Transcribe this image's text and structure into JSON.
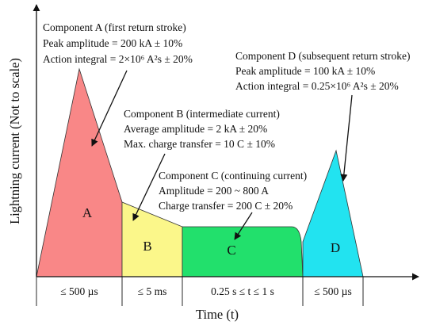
{
  "diagram": {
    "y_axis_label": "Lightning current (Not to scale)",
    "x_axis_label": "Time (t)",
    "colors": {
      "component_a": "#f98787",
      "component_b": "#fbf78a",
      "component_c": "#22e06c",
      "component_d": "#22e3f0",
      "axis": "#111111"
    },
    "components": [
      {
        "letter": "A",
        "annotation": [
          "Component A (first return stroke)",
          "Peak amplitude = 200 kA ± 10%",
          "Action integral = 2×10⁶ A²s ± 20%"
        ],
        "duration": "≤ 500 µs"
      },
      {
        "letter": "B",
        "annotation": [
          "Component B (intermediate current)",
          "Average amplitude = 2 kA ± 20%",
          "Max. charge transfer = 10 C ± 10%"
        ],
        "duration": "≤ 5 ms"
      },
      {
        "letter": "C",
        "annotation": [
          "Component C (continuing current)",
          "Amplitude = 200 ~ 800 A",
          "Charge transfer = 200 C ± 20%"
        ],
        "duration": "0.25 s ≤ t ≤ 1 s"
      },
      {
        "letter": "D",
        "annotation": [
          "Component D (subsequent return stroke)",
          "Peak amplitude = 100 kA ± 10%",
          "Action integral = 0.25×10⁶ A²s ± 20%"
        ],
        "duration": "≤ 500 µs"
      }
    ]
  }
}
